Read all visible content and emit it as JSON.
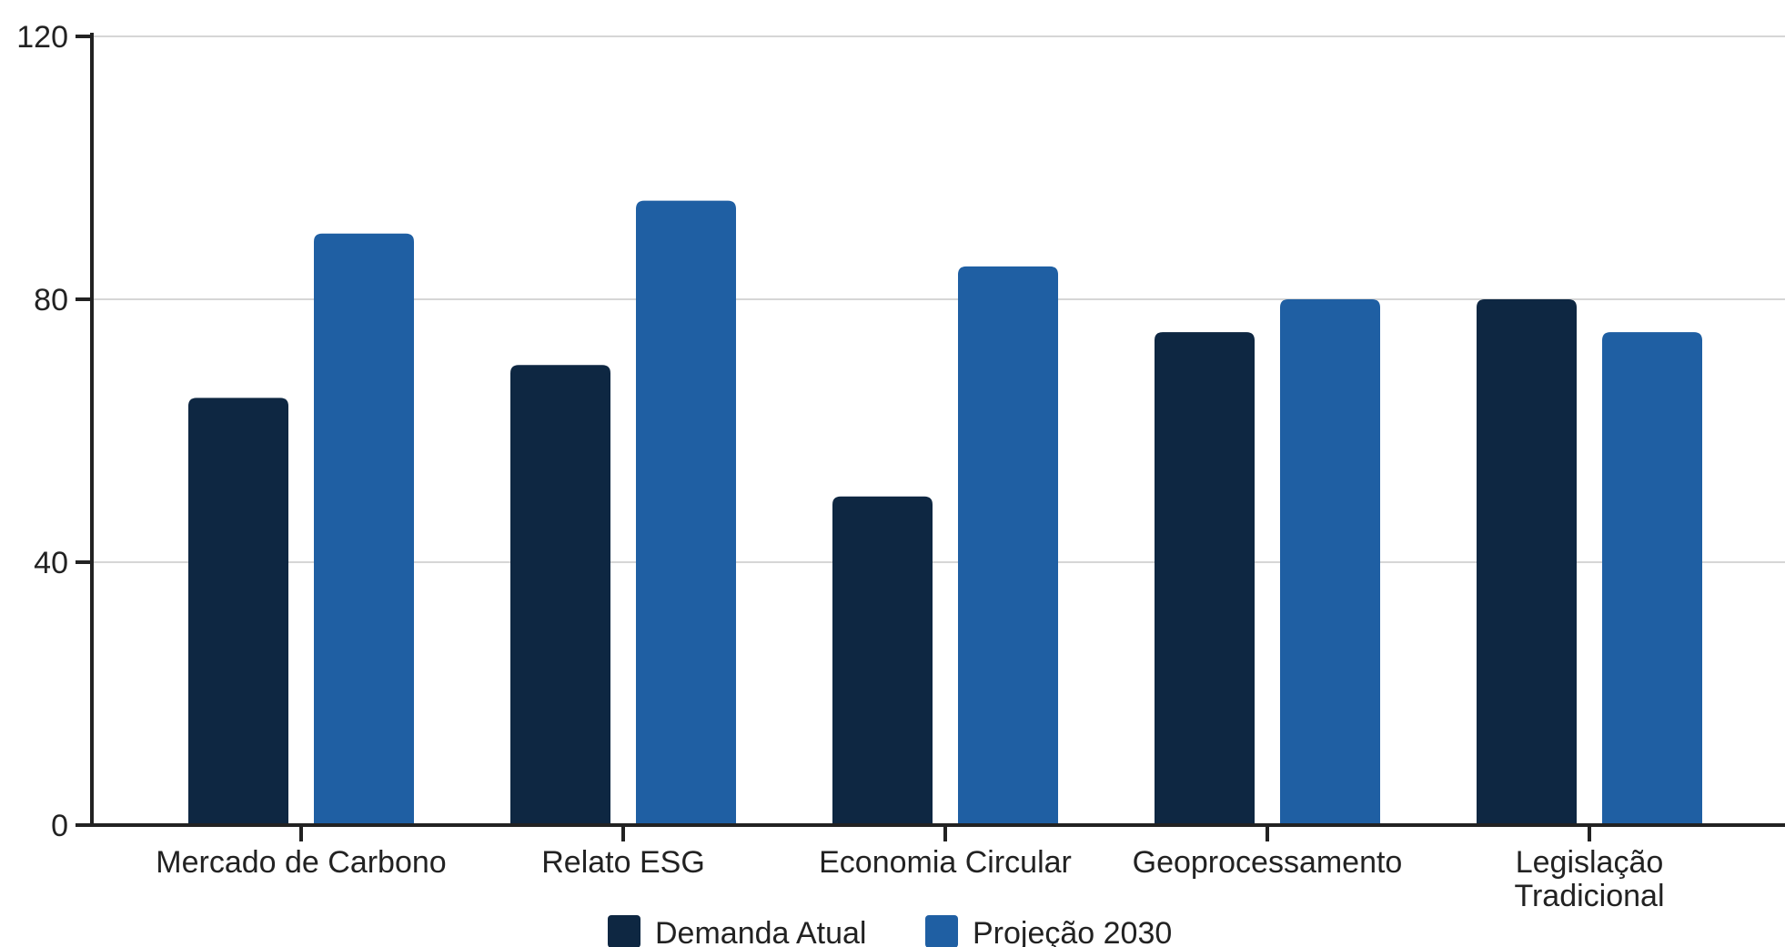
{
  "chart_data": {
    "type": "bar",
    "title": "",
    "xlabel": "",
    "ylabel": "",
    "categories": [
      "Mercado de Carbono",
      "Relato ESG",
      "Economia Circular",
      "Geoprocessamento",
      "Legislação Tradicional"
    ],
    "category_lines": [
      [
        "Mercado de Carbono"
      ],
      [
        "Relato ESG"
      ],
      [
        "Economia Circular"
      ],
      [
        "Geoprocessamento"
      ],
      [
        "Legislação",
        "Tradicional"
      ]
    ],
    "series": [
      {
        "name": "Demanda Atual",
        "color": "#0e2742",
        "values": [
          65,
          70,
          50,
          75,
          80
        ]
      },
      {
        "name": "Projeção 2030",
        "color": "#1f5fa3",
        "values": [
          90,
          95,
          85,
          80,
          75
        ]
      }
    ],
    "ylim": [
      0,
      120
    ],
    "yticks": [
      0,
      40,
      80,
      120
    ],
    "grid": true,
    "legend_position": "bottom-center"
  }
}
